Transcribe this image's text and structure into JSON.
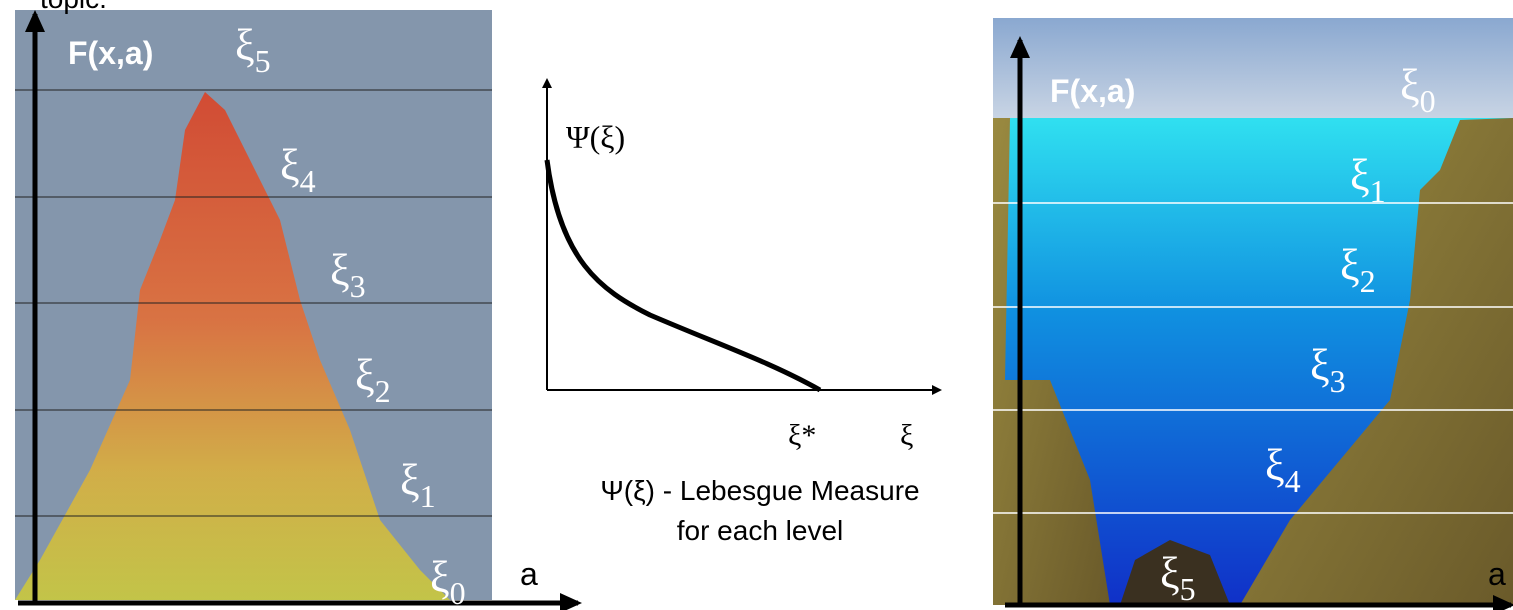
{
  "header": {
    "title": "topic."
  },
  "left_panel": {
    "y_label": "F(x,a)",
    "x_label": "a",
    "levels": [
      {
        "symbol": "ξ",
        "sub": "5"
      },
      {
        "symbol": "ξ",
        "sub": "4"
      },
      {
        "symbol": "ξ",
        "sub": "3"
      },
      {
        "symbol": "ξ",
        "sub": "2"
      },
      {
        "symbol": "ξ",
        "sub": "1"
      },
      {
        "symbol": "ξ",
        "sub": "0"
      }
    ]
  },
  "middle_panel": {
    "y_label": "Ψ(ξ)",
    "x_label": "ξ",
    "marker": "ξ*",
    "caption": [
      "Ψ(ξ) - Lebesgue Measure",
      "for each level"
    ]
  },
  "right_panel": {
    "y_label": "F(x,a)",
    "x_label": "a",
    "levels": [
      {
        "symbol": "ξ",
        "sub": "0"
      },
      {
        "symbol": "ξ",
        "sub": "1"
      },
      {
        "symbol": "ξ",
        "sub": "2"
      },
      {
        "symbol": "ξ",
        "sub": "3"
      },
      {
        "symbol": "ξ",
        "sub": "4"
      },
      {
        "symbol": "ξ",
        "sub": "5"
      }
    ]
  }
}
